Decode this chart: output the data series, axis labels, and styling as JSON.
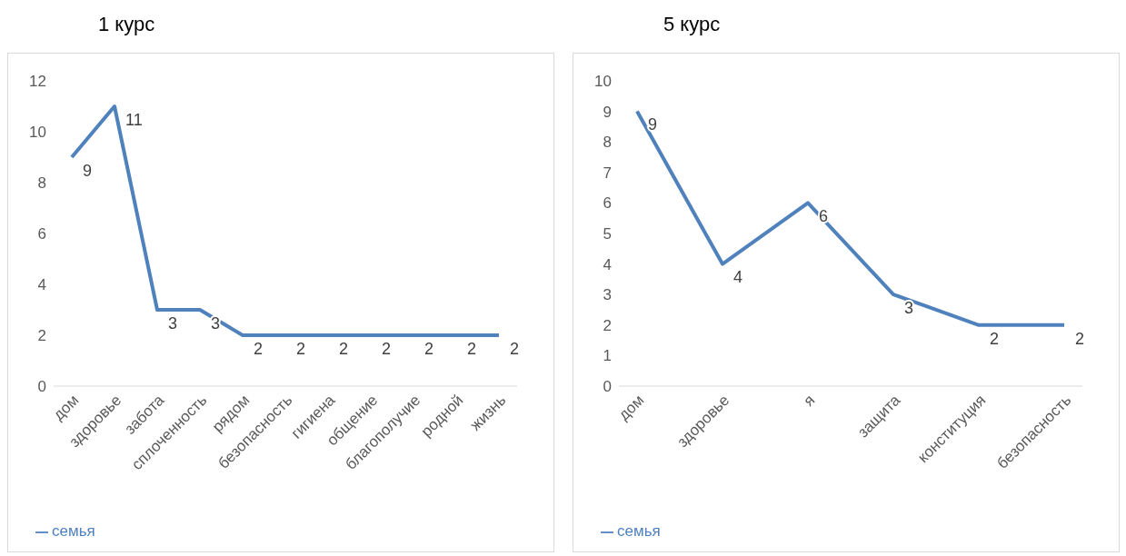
{
  "chart_data": [
    {
      "type": "line",
      "title": "1 курс",
      "categories": [
        "дом",
        "здоровье",
        "забота",
        "сплоченность",
        "рядом",
        "безопасность",
        "гигиена",
        "общение",
        "благополучие",
        "родной",
        "жизнь"
      ],
      "series": [
        {
          "name": "семья",
          "color": "#4f81bd",
          "values": [
            9,
            11,
            3,
            3,
            2,
            2,
            2,
            2,
            2,
            2,
            2
          ]
        }
      ],
      "ylim": [
        0,
        12
      ],
      "yticks": [
        0,
        2,
        4,
        6,
        8,
        10,
        12
      ],
      "grid": false,
      "legend": "bottom left",
      "data_labels": true,
      "marker": "none"
    },
    {
      "type": "line",
      "title": "5 курс",
      "categories": [
        "дом",
        "здоровье",
        "я",
        "защита",
        "конституция",
        "безопасность"
      ],
      "series": [
        {
          "name": "семья",
          "color": "#4f81bd",
          "values": [
            9,
            4,
            6,
            3,
            2,
            2
          ]
        }
      ],
      "ylim": [
        0,
        10
      ],
      "yticks": [
        0,
        1,
        2,
        3,
        4,
        5,
        6,
        7,
        8,
        9,
        10
      ],
      "grid": false,
      "legend": "bottom left",
      "data_labels": true,
      "marker": "none"
    }
  ]
}
